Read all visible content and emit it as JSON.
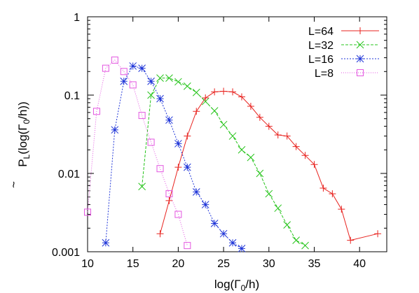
{
  "chart_data": {
    "type": "line",
    "title": "",
    "xlabel": "log(Γ",
    "xlabel_sub": "0",
    "xlabel_tail": "/h)",
    "ylabel_p": "P",
    "ylabel_tilde": "~",
    "ylabel_sub_l": "L",
    "ylabel_mid": "(log(Γ",
    "ylabel_sub_0": "0",
    "ylabel_tail": "/h))",
    "xlim": [
      10,
      43
    ],
    "ylim": [
      0.001,
      1
    ],
    "yscale": "log",
    "grid": false,
    "legend_position": "top-right",
    "xticks": [
      10,
      15,
      20,
      25,
      30,
      35,
      40
    ],
    "yticks": [
      {
        "value": 1,
        "label": "1"
      },
      {
        "value": 0.1,
        "label": "0.1"
      },
      {
        "value": 0.01,
        "label": "0.01"
      },
      {
        "value": 0.001,
        "label": "0.001"
      }
    ],
    "series": [
      {
        "name": "L=64",
        "color": "#e8231f",
        "marker": "plus",
        "dash": "",
        "x": [
          18,
          19,
          20,
          21,
          22,
          23,
          24,
          25,
          26,
          27,
          28,
          29,
          30,
          31,
          32,
          33,
          34,
          35,
          36,
          37,
          38,
          39,
          42
        ],
        "y": [
          0.0017,
          0.0045,
          0.012,
          0.03,
          0.062,
          0.092,
          0.11,
          0.112,
          0.11,
          0.095,
          0.072,
          0.052,
          0.04,
          0.031,
          0.03,
          0.022,
          0.017,
          0.013,
          0.0065,
          0.0055,
          0.0035,
          0.0014,
          0.0017
        ]
      },
      {
        "name": "L=32",
        "color": "#27c41c",
        "marker": "cross",
        "dash": "4,2",
        "x": [
          16,
          17,
          18,
          19,
          20,
          21,
          22,
          23,
          24,
          25,
          26,
          27,
          28,
          29,
          30,
          31,
          32,
          33,
          34
        ],
        "y": [
          0.0068,
          0.1,
          0.165,
          0.165,
          0.148,
          0.13,
          0.108,
          0.083,
          0.063,
          0.042,
          0.03,
          0.02,
          0.016,
          0.01,
          0.0055,
          0.0036,
          0.0022,
          0.0014,
          0.0012
        ]
      },
      {
        "name": "L=16",
        "color": "#1f35d8",
        "marker": "star",
        "dash": "2,2",
        "x": [
          12,
          13,
          14,
          15,
          16,
          17,
          18,
          19,
          20,
          21,
          22,
          23,
          24,
          25,
          26,
          27
        ],
        "y": [
          0.0013,
          0.036,
          0.15,
          0.235,
          0.22,
          0.15,
          0.09,
          0.048,
          0.024,
          0.012,
          0.0058,
          0.004,
          0.0023,
          0.0017,
          0.0013,
          0.0011
        ]
      },
      {
        "name": "L=8",
        "color": "#e356e0",
        "marker": "square",
        "dash": "1,2",
        "x": [
          10,
          11,
          12,
          13,
          14,
          15,
          16,
          17,
          18,
          19,
          20,
          21
        ],
        "y": [
          0.0032,
          0.062,
          0.22,
          0.28,
          0.2,
          0.135,
          0.055,
          0.025,
          0.0115,
          0.0055,
          0.003,
          0.0012
        ]
      }
    ]
  }
}
